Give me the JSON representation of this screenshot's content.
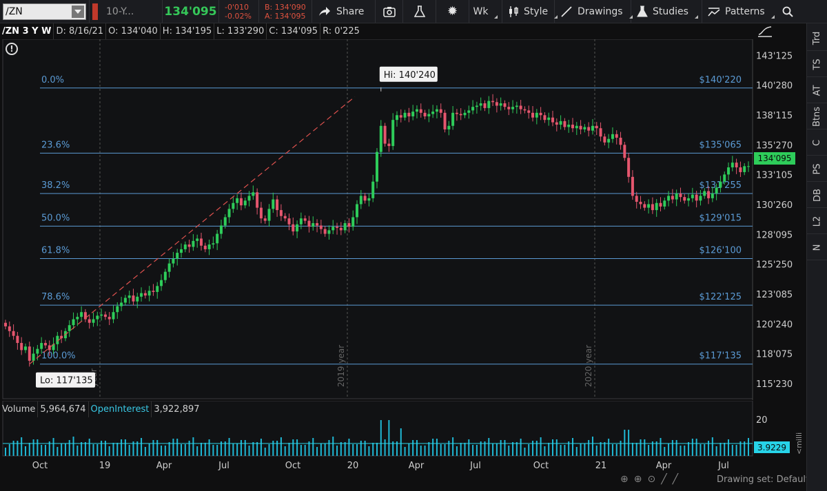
{
  "toolbar": {
    "symbol": "/ZN",
    "description": "10-Y...",
    "last_price": "134'095",
    "net_change": "-0'010",
    "pct_change": "-0.02%",
    "bid": "B: 134'090",
    "ask": "A: 134'095",
    "share_label": "Share",
    "aggregation_label": "Wk",
    "style_label": "Style",
    "drawings_label": "Drawings",
    "studies_label": "Studies",
    "patterns_label": "Patterns"
  },
  "info": {
    "title": "/ZN 3 Y W",
    "date": "D: 8/16/21",
    "open": "O: 134'040",
    "high": "H: 134'195",
    "low": "L: 133'290",
    "close": "C: 134'095",
    "range": "R: 0'225"
  },
  "side_tabs": [
    "Trd",
    "TS",
    "AT",
    "Btns",
    "C",
    "PS",
    "DB",
    "L2",
    "N"
  ],
  "volume_bar": {
    "volume_label": "Volume",
    "volume_value": "5,964,674",
    "oi_label": "OpenInterest",
    "oi_value": "3,922,897"
  },
  "badges": {
    "last_price": "134'095",
    "open_interest": "3.9229"
  },
  "footer": {
    "drawing_set": "Drawing set: Default"
  },
  "colors": {
    "up": "#2ecc5a",
    "down": "#e5566e",
    "fib": "#5b9bd5",
    "trend": "#e0524f",
    "volume": "#1fb9d6"
  },
  "chart_data": {
    "type": "candlestick",
    "title": "/ZN 3 Y W",
    "y_ticks": [
      "143'125",
      "140'280",
      "138'115",
      "135'270",
      "133'105",
      "130'260",
      "128'095",
      "125'250",
      "123'085",
      "120'240",
      "118'075",
      "115'230"
    ],
    "y_tick_values": [
      143.39,
      140.875,
      138.36,
      135.84,
      133.33,
      130.81,
      128.3,
      125.78,
      123.27,
      120.75,
      118.23,
      115.72
    ],
    "ylim": [
      114.5,
      144.8
    ],
    "x_ticks": [
      "Oct",
      "19",
      "Apr",
      "Jul",
      "Oct",
      "20",
      "Apr",
      "Jul",
      "Oct",
      "21",
      "Apr",
      "Jul"
    ],
    "year_markers": [
      "2019 year",
      "2020 year"
    ],
    "fib_levels": [
      {
        "pct": "0.0%",
        "price": "$140'220",
        "value": 140.69
      },
      {
        "pct": "23.6%",
        "price": "$135'065",
        "value": 135.2
      },
      {
        "pct": "38.2%",
        "price": "$131'255",
        "value": 131.8
      },
      {
        "pct": "50.0%",
        "price": "$129'015",
        "value": 129.05
      },
      {
        "pct": "61.8%",
        "price": "$126'100",
        "value": 126.31
      },
      {
        "pct": "78.6%",
        "price": "$122'125",
        "value": 122.39
      },
      {
        "pct": "100.0%",
        "price": "$117'135",
        "value": 117.42
      }
    ],
    "hi_label": "Hi: 140'240",
    "lo_label": "Lo: 117'135",
    "hi_value": 140.75,
    "lo_value": 117.42,
    "closes": [
      120.6,
      120.2,
      119.8,
      119.2,
      118.6,
      118.9,
      117.7,
      118.3,
      118.7,
      119.2,
      119.0,
      118.6,
      119.1,
      119.8,
      119.6,
      120.2,
      120.7,
      121.2,
      121.4,
      121.8,
      121.2,
      120.9,
      121.2,
      121.5,
      121.6,
      121.4,
      121.2,
      121.8,
      122.3,
      122.6,
      123.0,
      123.2,
      122.7,
      123.1,
      123.4,
      123.2,
      123.6,
      123.5,
      124.0,
      124.5,
      125.2,
      125.9,
      126.3,
      126.8,
      127.1,
      127.5,
      127.3,
      127.8,
      128.0,
      127.4,
      127.1,
      127.5,
      127.6,
      128.4,
      129.1,
      129.8,
      130.5,
      131.0,
      131.4,
      130.8,
      131.2,
      131.6,
      131.9,
      130.6,
      129.7,
      129.5,
      130.5,
      131.3,
      130.4,
      129.9,
      129.7,
      129.2,
      128.6,
      129.2,
      129.7,
      129.5,
      129.0,
      129.3,
      129.1,
      128.8,
      128.4,
      128.7,
      129.0,
      128.9,
      128.7,
      129.3,
      129.0,
      129.8,
      130.9,
      131.6,
      131.2,
      131.4,
      132.8,
      135.3,
      137.5,
      136.0,
      135.8,
      138.0,
      138.4,
      138.2,
      138.6,
      138.3,
      138.7,
      138.9,
      138.6,
      138.3,
      138.5,
      138.7,
      138.9,
      138.6,
      137.2,
      137.5,
      138.6,
      138.5,
      138.4,
      138.6,
      138.8,
      139.1,
      139.2,
      139.4,
      139.0,
      139.6,
      139.5,
      139.2,
      139.4,
      139.1,
      138.9,
      139.1,
      139.2,
      138.9,
      138.8,
      138.6,
      138.2,
      138.6,
      138.4,
      138.0,
      138.2,
      137.8,
      137.6,
      137.9,
      137.4,
      137.6,
      137.3,
      137.5,
      137.2,
      137.4,
      137.1,
      137.5,
      137.3,
      136.6,
      136.1,
      136.4,
      136.8,
      136.5,
      135.9,
      134.8,
      133.2,
      131.6,
      131.1,
      130.9,
      130.6,
      130.9,
      130.4,
      131.0,
      130.7,
      131.2,
      131.6,
      131.3,
      131.8,
      131.5,
      131.2,
      131.4,
      131.7,
      131.2,
      131.6,
      132.0,
      131.4,
      131.8,
      132.3,
      132.8,
      133.4,
      134.0,
      134.4,
      134.0,
      133.6,
      134.1,
      134.1
    ],
    "ohlc_note": "weekly candles, ~3 years"
  }
}
